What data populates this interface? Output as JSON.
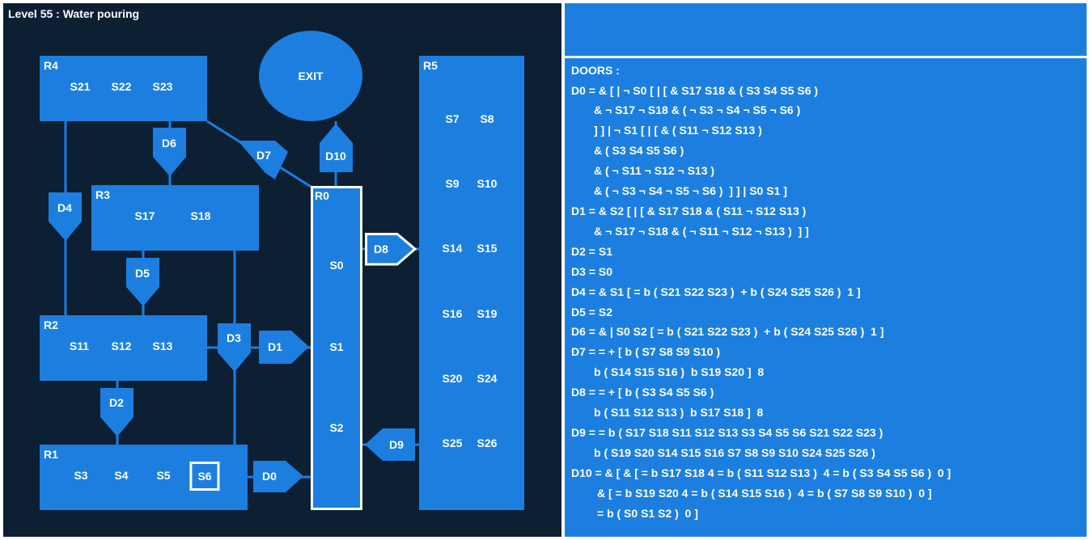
{
  "level_title": "Level 55 : Water pouring",
  "exit_label": "EXIT",
  "colors": {
    "background": "#0d1f33",
    "room": "#1c7fe0",
    "line": "#1c7fe0",
    "text": "#ffffff"
  },
  "rooms": {
    "R0": {
      "label": "R0",
      "switches": [
        "S0",
        "S1",
        "S2"
      ]
    },
    "R1": {
      "label": "R1",
      "switches": [
        "S3",
        "S4",
        "S5",
        "S6"
      ],
      "selected": "S6"
    },
    "R2": {
      "label": "R2",
      "switches": [
        "S11",
        "S12",
        "S13"
      ]
    },
    "R3": {
      "label": "R3",
      "switches": [
        "S17",
        "S18"
      ]
    },
    "R4": {
      "label": "R4",
      "switches": [
        "S21",
        "S22",
        "S23"
      ]
    },
    "R5": {
      "label": "R5",
      "switches": [
        "S7",
        "S8",
        "S9",
        "S10",
        "S14",
        "S15",
        "S16",
        "S19",
        "S20",
        "S24",
        "S25",
        "S26"
      ]
    }
  },
  "doors": [
    "D0",
    "D1",
    "D2",
    "D3",
    "D4",
    "D5",
    "D6",
    "D7",
    "D8",
    "D9",
    "D10"
  ],
  "panel": {
    "lines": [
      "DOORS :",
      "D0 = & [ | ¬ S0 [ | [ & S17 S18 & ( S3 S4 S5 S6 )",
      "& ¬ S17 ¬ S18 & ( ¬ S3 ¬ S4 ¬ S5 ¬ S6 )",
      "] ] | ¬ S1 [ | [ & ( S11 ¬ S12 S13 )",
      "& ( S3 S4 S5 S6 )",
      "& ( ¬ S11 ¬ S12 ¬ S13 )",
      "& ( ¬ S3 ¬ S4 ¬ S5 ¬ S6 )  ] ] | S0 S1 ]",
      "D1 = & S2 [ | [ & S17 S18 & ( S11 ¬ S12 S13 )",
      "& ¬ S17 ¬ S18 & ( ¬ S11 ¬ S12 ¬ S13 )  ] ]",
      "D2 = S1",
      "D3 = S0",
      "D4 = & S1 [ = b ( S21 S22 S23 )  + b ( S24 S25 S26 )  1 ]",
      "D5 = S2",
      "D6 = & | S0 S2 [ = b ( S21 S22 S23 )  + b ( S24 S25 S26 )  1 ]",
      "D7 = = + [ b ( S7 S8 S9 S10 )",
      "b ( S14 S15 S16 )  b S19 S20 ]  8",
      "D8 = = + [ b ( S3 S4 S5 S6 )",
      "b ( S11 S12 S13 )  b S17 S18 ]  8",
      "D9 = = b ( S17 S18 S11 S12 S13 S3 S4 S5 S6 S21 S22 S23 )",
      "b ( S19 S20 S14 S15 S16 S7 S8 S9 S10 S24 S25 S26 )",
      "D10 = & [ & [ = b S17 S18 4 = b ( S11 S12 S13 )  4 = b ( S3 S4 S5 S6 )  0 ]",
      "& [ = b S19 S20 4 = b ( S14 S15 S16 )  4 = b ( S7 S8 S9 S10 )  0 ]",
      "= b ( S0 S1 S2 )  0 ]"
    ]
  }
}
